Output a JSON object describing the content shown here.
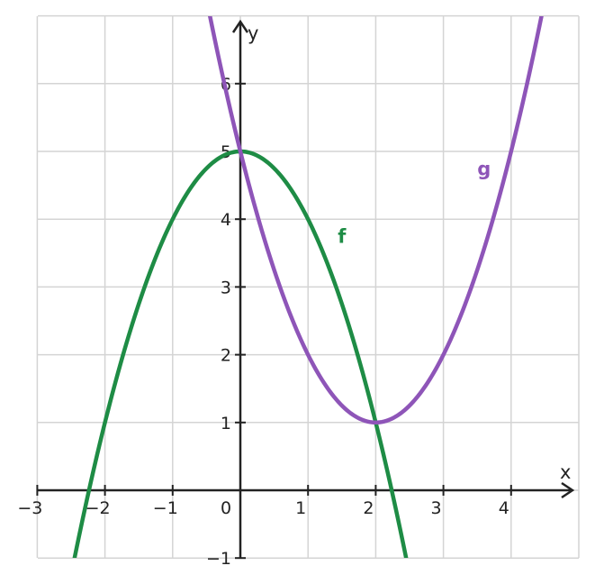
{
  "chart_data": {
    "type": "line",
    "xlabel": "x",
    "ylabel": "y",
    "xlim": [
      -3,
      5
    ],
    "ylim": [
      -1,
      7
    ],
    "grid": true,
    "x_ticks": [
      -3,
      -2,
      -1,
      0,
      1,
      2,
      3,
      4
    ],
    "x_tick_labels": [
      "−3",
      "−2",
      "−1",
      "0",
      "1",
      "2",
      "3",
      "4"
    ],
    "y_ticks": [
      -1,
      1,
      2,
      3,
      4,
      5,
      6
    ],
    "y_tick_labels": [
      "−1",
      "1",
      "2",
      "3",
      "4",
      "5",
      "6"
    ],
    "series": [
      {
        "name": "f",
        "color": "#1e8c45",
        "formula": "5 - x^2",
        "x": [
          -2.45,
          -2,
          -1.5,
          -1,
          -0.5,
          0,
          0.5,
          1,
          1.5,
          2,
          2.45
        ],
        "y": [
          -1.0,
          1.0,
          2.75,
          4.0,
          4.75,
          5.0,
          4.75,
          4.0,
          2.75,
          1.0,
          -1.0
        ]
      },
      {
        "name": "g",
        "color": "#8e55b8",
        "formula": "(x - 2)^2 + 1",
        "x": [
          -0.45,
          0,
          0.5,
          1,
          1.5,
          2,
          2.5,
          3,
          3.5,
          4,
          4.45
        ],
        "y": [
          7.0,
          5.0,
          3.25,
          2.0,
          1.25,
          1.0,
          1.25,
          2.0,
          3.25,
          5.0,
          7.0
        ]
      }
    ],
    "annotations": [
      {
        "text": "f",
        "x": 1.5,
        "y": 3.65,
        "color": "#1e8c45"
      },
      {
        "text": "g",
        "x": 3.6,
        "y": 4.65,
        "color": "#8e55b8"
      }
    ]
  }
}
